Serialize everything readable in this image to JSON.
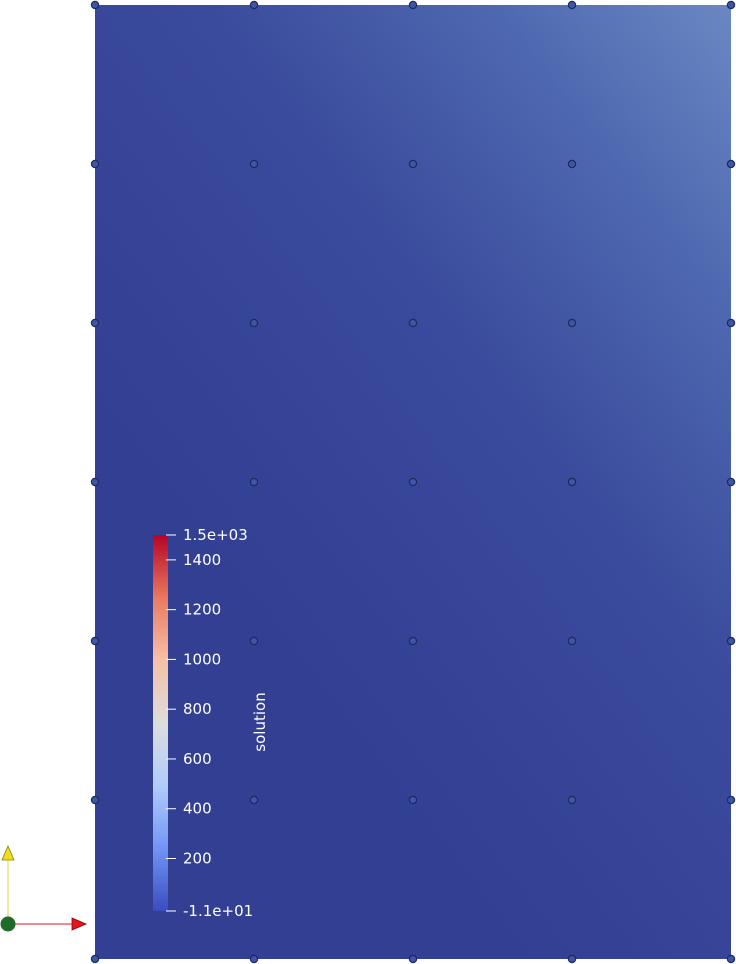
{
  "colorbar": {
    "title": "solution",
    "labels": [
      "1.5e+03",
      "1400",
      "1200",
      "1000",
      "800",
      "600",
      "400",
      "200",
      "-1.1e+01"
    ],
    "range": [
      -11,
      1500
    ],
    "label_values": [
      1500,
      1400,
      1200,
      1000,
      800,
      600,
      400,
      200,
      -11
    ],
    "colormap": [
      "#3b4cc0",
      "#7396f5",
      "#b0cbfc",
      "#dcdddd",
      "#f6bfa6",
      "#ea7b60",
      "#b40426"
    ]
  },
  "mesh": {
    "columns": 5,
    "rows": 7,
    "node_color": "#3e56a8",
    "node_stroke": "#1c2a5c",
    "field_base_color": "#323f93",
    "field_high_color": "#6b87c2"
  },
  "axes_triad": {
    "x_color": "#e8141b",
    "y_color": "#f0e01c",
    "origin_color": "#1f6b2a"
  }
}
